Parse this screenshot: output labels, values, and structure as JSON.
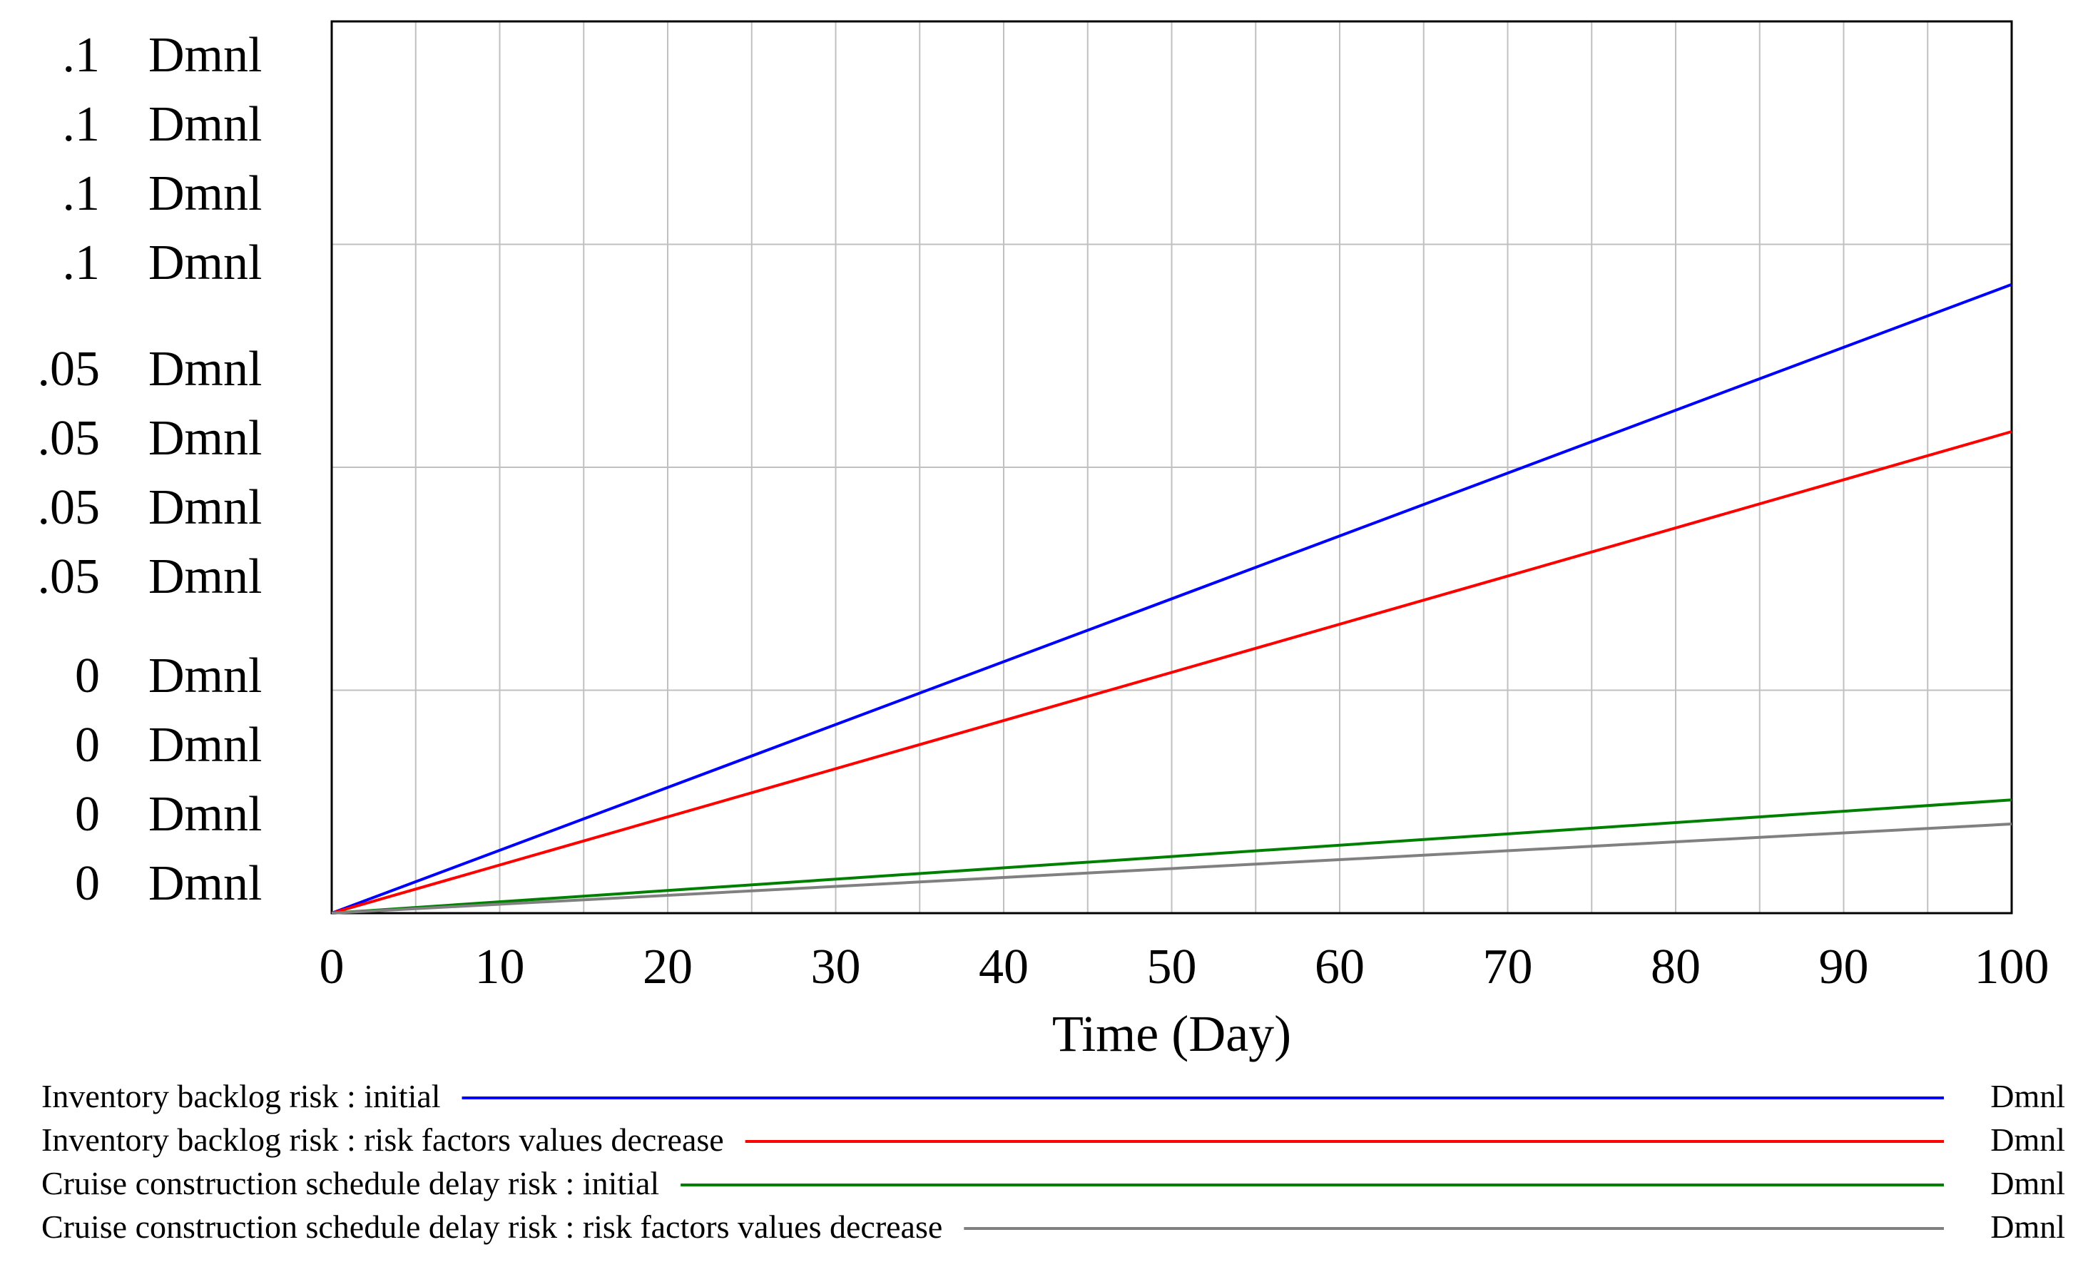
{
  "chart_data": {
    "type": "line",
    "title": "",
    "xlabel": "Time (Day)",
    "ylabel": "",
    "xlim": [
      0,
      100
    ],
    "ylim": [
      0,
      0.1
    ],
    "grid": true,
    "x_ticks": [
      "0",
      "10",
      "20",
      "30",
      "40",
      "50",
      "60",
      "70",
      "80",
      "90",
      "100"
    ],
    "y_tick_groups": [
      {
        "value": 0.1,
        "labels": [
          ".1 Dmnl",
          ".1 Dmnl",
          ".1 Dmnl",
          ".1 Dmnl"
        ]
      },
      {
        "value": 0.05,
        "labels": [
          ".05 Dmnl",
          ".05 Dmnl",
          ".05 Dmnl",
          ".05 Dmnl"
        ]
      },
      {
        "value": 0,
        "labels": [
          "0 Dmnl",
          "0 Dmnl",
          "0 Dmnl",
          "0 Dmnl"
        ]
      }
    ],
    "legend_position": "bottom",
    "series": [
      {
        "name": "Inventory backlog risk : initial",
        "unit": "Dmnl",
        "color": "#0000ff",
        "x": [
          0,
          100
        ],
        "y": [
          0,
          0.0705
        ]
      },
      {
        "name": "Inventory backlog risk : risk factors values decrease",
        "unit": "Dmnl",
        "color": "#ff0000",
        "x": [
          0,
          100
        ],
        "y": [
          0,
          0.054
        ]
      },
      {
        "name": "Cruise construction schedule delay risk : initial",
        "unit": "Dmnl",
        "color": "#008000",
        "x": [
          0,
          100
        ],
        "y": [
          0,
          0.0127
        ]
      },
      {
        "name": "Cruise construction schedule delay risk : risk factors values decrease",
        "unit": "Dmnl",
        "color": "#808080",
        "x": [
          0,
          100
        ],
        "y": [
          0,
          0.01
        ]
      }
    ]
  }
}
